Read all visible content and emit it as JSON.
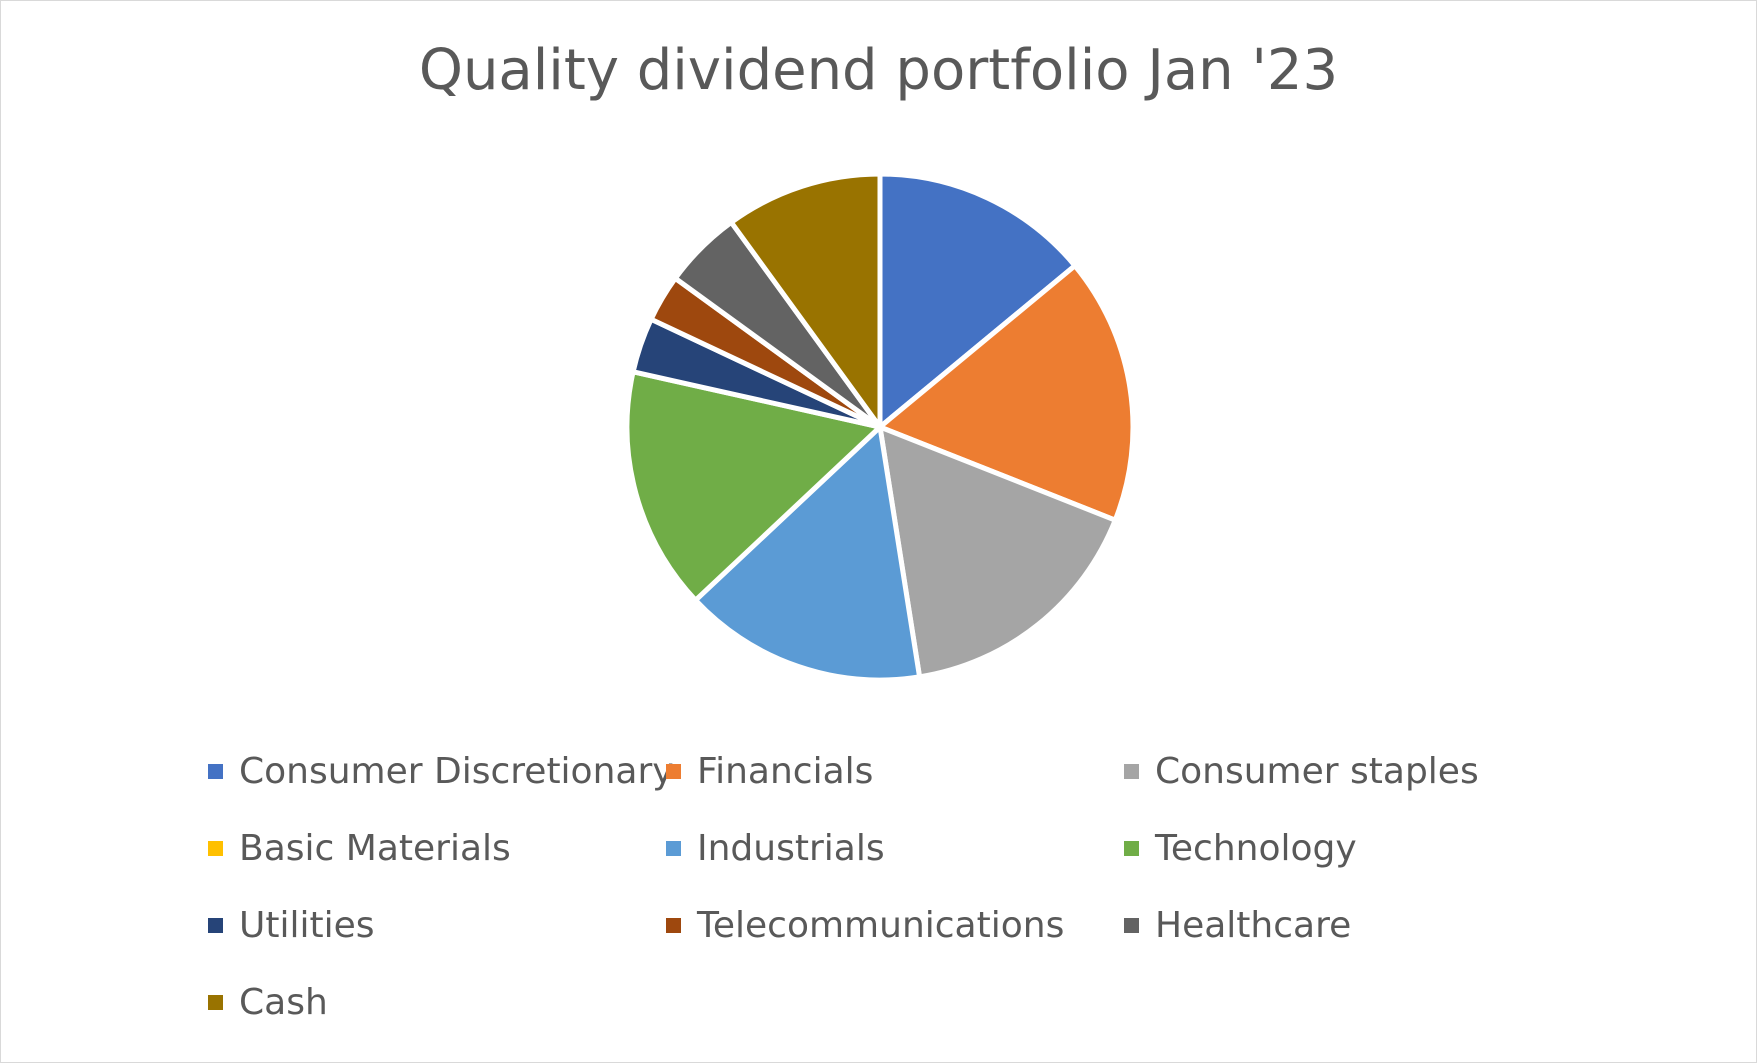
{
  "chart_data": {
    "type": "pie",
    "title": "Quality dividend portfolio Jan '23",
    "categories": [
      "Consumer Discretionary",
      "Financials",
      "Consumer staples",
      "Basic Materials",
      "Industrials",
      "Technology",
      "Utilities",
      "Telecommunications",
      "Healthcare",
      "Cash"
    ],
    "values": [
      14,
      17,
      16.5,
      0,
      15.5,
      15.5,
      3.5,
      3,
      5,
      10
    ],
    "colors": [
      "#4472C4",
      "#ED7D31",
      "#A5A5A5",
      "#FFC000",
      "#5B9BD5",
      "#70AD47",
      "#264478",
      "#9E480E",
      "#636363",
      "#997300"
    ],
    "legend_position": "bottom",
    "data_labels": false
  }
}
